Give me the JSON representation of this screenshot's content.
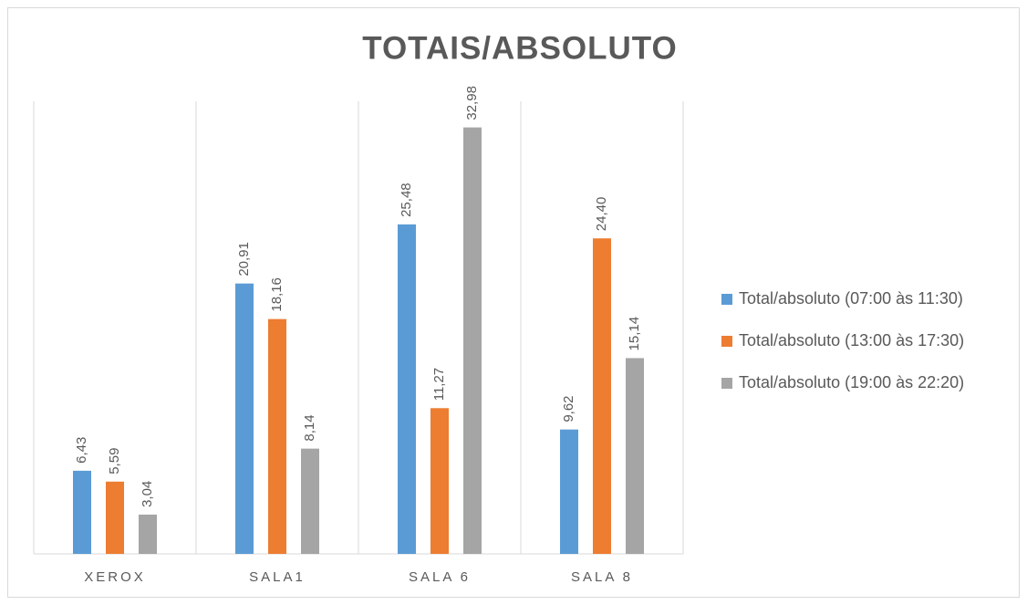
{
  "chart_data": {
    "type": "bar",
    "title": "TOTAIS/ABSOLUTO",
    "categories": [
      "XEROX",
      "SALA1",
      "SALA 6",
      "SALA 8"
    ],
    "series": [
      {
        "name": "Total/absoluto (07:00 às 11:30)",
        "color": "#5b9bd5",
        "values": [
          6.43,
          20.91,
          25.48,
          9.62
        ],
        "value_labels": [
          "6,43",
          "20,91",
          "25,48",
          "9,62"
        ]
      },
      {
        "name": "Total/absoluto (13:00 às 17:30)",
        "color": "#ed7d31",
        "values": [
          5.59,
          18.16,
          11.27,
          24.4
        ],
        "value_labels": [
          "5,59",
          "18,16",
          "11,27",
          "24,40"
        ]
      },
      {
        "name": "Total/absoluto (19:00 às 22:20)",
        "color": "#a5a5a5",
        "values": [
          3.04,
          8.14,
          32.98,
          15.14
        ],
        "value_labels": [
          "3,04",
          "8,14",
          "32,98",
          "15,14"
        ]
      }
    ],
    "ylim": [
      0,
      35
    ],
    "legend": "right"
  }
}
